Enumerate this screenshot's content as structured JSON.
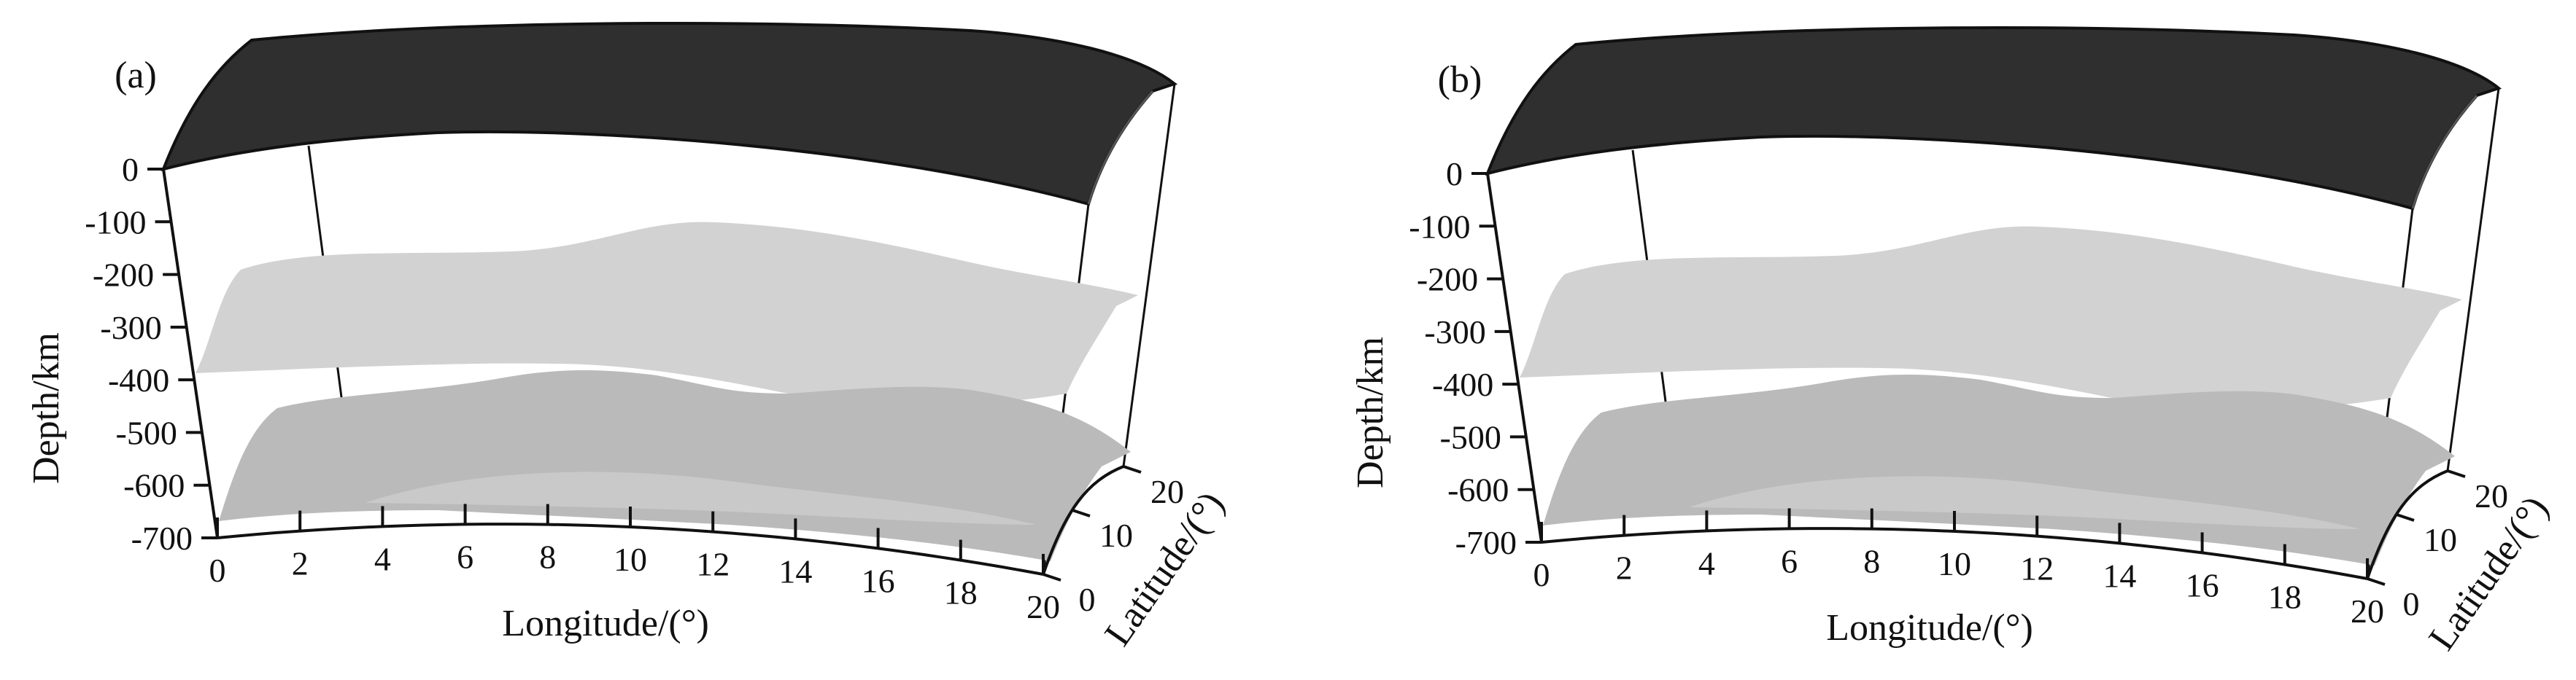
{
  "figure": {
    "panels": [
      {
        "label": "(a)",
        "depth_axis": {
          "title": "Depth/km",
          "ticks": [
            "0",
            "-100",
            "-200",
            "-300",
            "-400",
            "-500",
            "-600",
            "-700"
          ]
        },
        "longitude_axis": {
          "title": "Longitude/(°)",
          "ticks": [
            "0",
            "2",
            "4",
            "6",
            "8",
            "10",
            "12",
            "14",
            "16",
            "18",
            "20"
          ]
        },
        "latitude_axis": {
          "title": "Latitude/(°)",
          "ticks": [
            "0",
            "10",
            "20"
          ]
        }
      },
      {
        "label": "(b)",
        "depth_axis": {
          "title": "Depth/km",
          "ticks": [
            "0",
            "-100",
            "-200",
            "-300",
            "-400",
            "-500",
            "-600",
            "-700"
          ]
        },
        "longitude_axis": {
          "title": "Longitude/(°)",
          "ticks": [
            "0",
            "2",
            "4",
            "6",
            "8",
            "10",
            "12",
            "14",
            "16",
            "18",
            "20"
          ]
        },
        "latitude_axis": {
          "title": "Latitude/(°)",
          "ticks": [
            "0",
            "10",
            "20"
          ]
        }
      }
    ],
    "colors": {
      "top_layer": "#2f2f2f",
      "upper_surface": "#d2d2d2",
      "lower_surface": "#bababa",
      "axis": "#111111"
    }
  }
}
